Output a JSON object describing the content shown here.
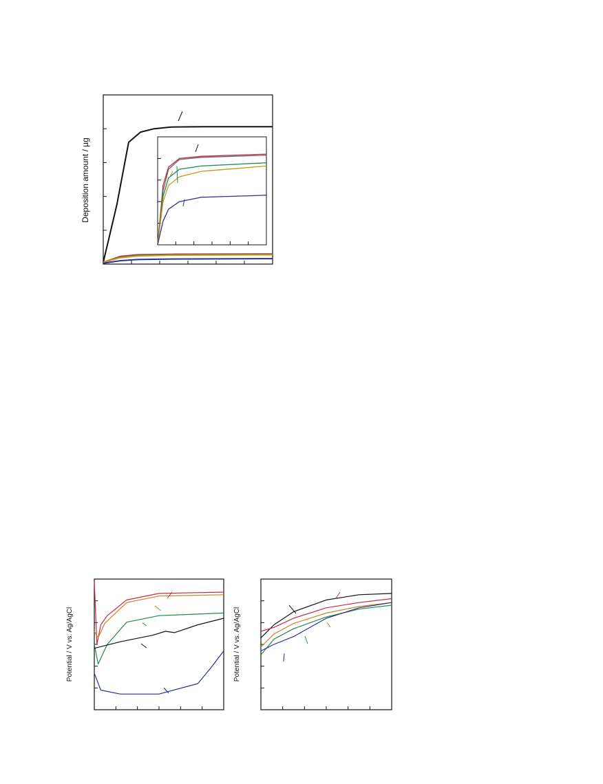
{
  "chart_data": [
    {
      "type": "line",
      "title": "",
      "xlabel": "",
      "ylabel": "Deposition amount / µg",
      "grid": false,
      "series": [
        {
          "color": "#111111",
          "points": [
            [
              0,
              0.01
            ],
            [
              0.08,
              0.35
            ],
            [
              0.15,
              0.72
            ],
            [
              0.22,
              0.78
            ],
            [
              0.3,
              0.8
            ],
            [
              0.4,
              0.81
            ],
            [
              0.6,
              0.812
            ],
            [
              1,
              0.812
            ]
          ]
        },
        {
          "color": "#c8273c",
          "points": [
            [
              0,
              0.01
            ],
            [
              0.1,
              0.045
            ],
            [
              0.2,
              0.055
            ],
            [
              0.4,
              0.058
            ],
            [
              1,
              0.06
            ]
          ]
        },
        {
          "color": "#1e8a4c",
          "points": [
            [
              0,
              0.01
            ],
            [
              0.1,
              0.04
            ],
            [
              0.2,
              0.05
            ],
            [
              0.4,
              0.055
            ],
            [
              1,
              0.057
            ]
          ]
        },
        {
          "color": "#c49a1c",
          "points": [
            [
              0,
              0.01
            ],
            [
              0.1,
              0.038
            ],
            [
              0.2,
              0.048
            ],
            [
              0.4,
              0.053
            ],
            [
              1,
              0.055
            ]
          ]
        },
        {
          "color": "#2a2f8f",
          "points": [
            [
              0,
              0.005
            ],
            [
              0.1,
              0.02
            ],
            [
              0.2,
              0.027
            ],
            [
              0.4,
              0.03
            ],
            [
              1,
              0.032
            ]
          ]
        }
      ]
    },
    {
      "type": "line",
      "title": "",
      "inset": true,
      "series": [
        {
          "color": "#c8273c",
          "points": [
            [
              0,
              0
            ],
            [
              0.05,
              0.55
            ],
            [
              0.1,
              0.72
            ],
            [
              0.2,
              0.8
            ],
            [
              0.4,
              0.82
            ],
            [
              1,
              0.84
            ]
          ]
        },
        {
          "color": "#666666",
          "points": [
            [
              0,
              0
            ],
            [
              0.05,
              0.5
            ],
            [
              0.1,
              0.7
            ],
            [
              0.2,
              0.79
            ],
            [
              0.4,
              0.81
            ],
            [
              1,
              0.83
            ]
          ]
        },
        {
          "color": "#1e8a4c",
          "points": [
            [
              0,
              0
            ],
            [
              0.05,
              0.45
            ],
            [
              0.1,
              0.62
            ],
            [
              0.2,
              0.7
            ],
            [
              0.4,
              0.73
            ],
            [
              1,
              0.76
            ]
          ]
        },
        {
          "color": "#c49a1c",
          "points": [
            [
              0,
              0
            ],
            [
              0.05,
              0.4
            ],
            [
              0.1,
              0.55
            ],
            [
              0.2,
              0.63
            ],
            [
              0.4,
              0.68
            ],
            [
              1,
              0.73
            ]
          ]
        },
        {
          "color": "#2a2f8f",
          "points": [
            [
              0,
              0
            ],
            [
              0.05,
              0.22
            ],
            [
              0.1,
              0.33
            ],
            [
              0.2,
              0.4
            ],
            [
              0.4,
              0.44
            ],
            [
              1,
              0.46
            ]
          ]
        }
      ]
    },
    {
      "type": "line",
      "title": "",
      "ylabel": "Potential / V vs. Ag/AgCl",
      "series": [
        {
          "color": "#c8273c",
          "points": [
            [
              0,
              0.98
            ],
            [
              0.02,
              0.5
            ],
            [
              0.05,
              0.65
            ],
            [
              0.1,
              0.72
            ],
            [
              0.25,
              0.84
            ],
            [
              0.5,
              0.89
            ],
            [
              1,
              0.9
            ]
          ]
        },
        {
          "color": "#c4822a",
          "points": [
            [
              0,
              0.6
            ],
            [
              0.03,
              0.55
            ],
            [
              0.08,
              0.66
            ],
            [
              0.25,
              0.82
            ],
            [
              0.5,
              0.87
            ],
            [
              1,
              0.88
            ]
          ]
        },
        {
          "color": "#1e8a4c",
          "points": [
            [
              0,
              0.5
            ],
            [
              0.03,
              0.35
            ],
            [
              0.1,
              0.5
            ],
            [
              0.25,
              0.67
            ],
            [
              0.5,
              0.72
            ],
            [
              1,
              0.74
            ]
          ]
        },
        {
          "color": "#111111",
          "points": [
            [
              0,
              0.47
            ],
            [
              0.2,
              0.52
            ],
            [
              0.45,
              0.57
            ],
            [
              0.55,
              0.6
            ],
            [
              0.62,
              0.59
            ],
            [
              0.8,
              0.65
            ],
            [
              1,
              0.7
            ]
          ]
        },
        {
          "color": "#2a2f8f",
          "points": [
            [
              0,
              0.28
            ],
            [
              0.05,
              0.15
            ],
            [
              0.2,
              0.12
            ],
            [
              0.5,
              0.12
            ],
            [
              0.8,
              0.2
            ],
            [
              0.9,
              0.32
            ],
            [
              1,
              0.45
            ]
          ]
        }
      ]
    },
    {
      "type": "line",
      "title": "",
      "ylabel": "Potential / V vs. Ag/AgCl",
      "series": [
        {
          "color": "#111111",
          "points": [
            [
              0,
              0.55
            ],
            [
              0.1,
              0.65
            ],
            [
              0.25,
              0.75
            ],
            [
              0.5,
              0.84
            ],
            [
              0.75,
              0.88
            ],
            [
              1,
              0.89
            ]
          ]
        },
        {
          "color": "#c8273c",
          "points": [
            [
              0,
              0.6
            ],
            [
              0.1,
              0.63
            ],
            [
              0.25,
              0.7
            ],
            [
              0.5,
              0.78
            ],
            [
              0.75,
              0.82
            ],
            [
              1,
              0.85
            ]
          ]
        },
        {
          "color": "#c4822a",
          "points": [
            [
              0,
              0.48
            ],
            [
              0.1,
              0.58
            ],
            [
              0.25,
              0.66
            ],
            [
              0.5,
              0.74
            ],
            [
              0.75,
              0.79
            ],
            [
              1,
              0.82
            ]
          ]
        },
        {
          "color": "#1e8a4c",
          "points": [
            [
              0,
              0.42
            ],
            [
              0.1,
              0.54
            ],
            [
              0.25,
              0.62
            ],
            [
              0.5,
              0.71
            ],
            [
              0.75,
              0.77
            ],
            [
              1,
              0.8
            ]
          ]
        },
        {
          "color": "#2a2f8f",
          "points": [
            [
              0,
              0.45
            ],
            [
              0.1,
              0.5
            ],
            [
              0.25,
              0.56
            ],
            [
              0.5,
              0.7
            ],
            [
              0.75,
              0.78
            ],
            [
              1,
              0.82
            ]
          ]
        }
      ]
    }
  ]
}
